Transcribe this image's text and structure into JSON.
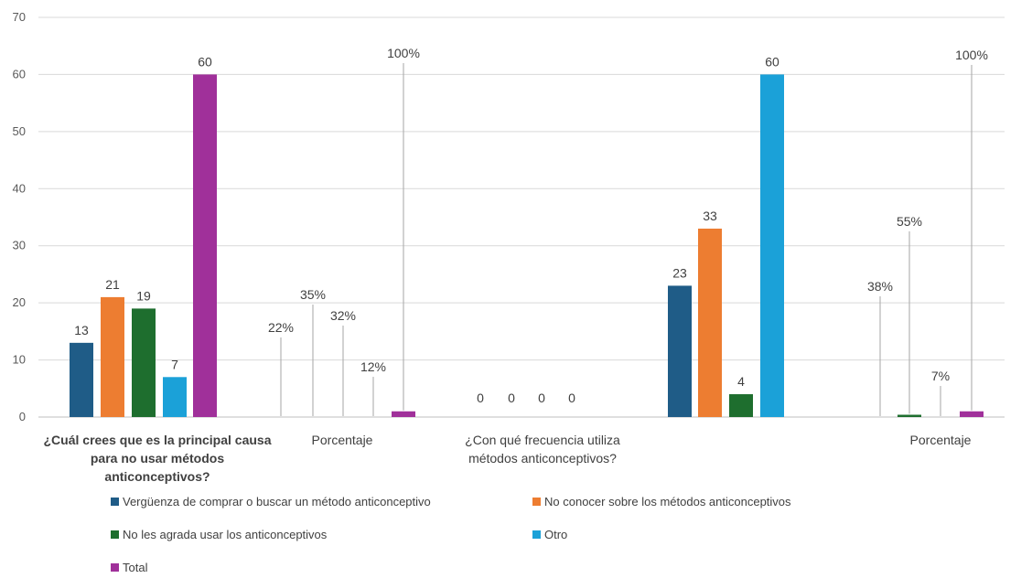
{
  "chart_data": {
    "type": "bar",
    "ylim": [
      0,
      70
    ],
    "yticks": [
      0,
      10,
      20,
      30,
      40,
      50,
      60,
      70
    ],
    "grid": true,
    "legend_position": "bottom",
    "categories": [
      "¿Cuál crees que es la principal causa para no usar métodos anticonceptivos?",
      "Porcentaje",
      "¿Con qué frecuencia utiliza métodos anticonceptivos?",
      "Porcentaje"
    ],
    "series": [
      {
        "name": "Vergüenza de comprar o buscar un método anticonceptivo",
        "color": "#1f5c87",
        "values": [
          13,
          0.22,
          0,
          null
        ],
        "labels": [
          "13",
          "22%",
          "0",
          ""
        ]
      },
      {
        "name": "No conocer sobre los métodos anticonceptivos",
        "color": "#ed7d31",
        "values": [
          21,
          0.35,
          0,
          0.38
        ],
        "labels": [
          "21",
          "35%",
          "0",
          "38%"
        ]
      },
      {
        "name": "No les agrada usar los anticonceptivos",
        "color": "#1e6e2e",
        "values": [
          19,
          0.32,
          0,
          0.55
        ],
        "labels": [
          "19",
          "32%",
          "0",
          "55%"
        ]
      },
      {
        "name": "Otro",
        "color": "#1ba1d8",
        "values": [
          7,
          0.12,
          0,
          0.07
        ],
        "labels": [
          "7",
          "12%",
          "0",
          "7%"
        ]
      },
      {
        "name": "Total",
        "color": "#a0309a",
        "values": [
          60,
          1,
          null,
          1
        ],
        "labels": [
          "60",
          "100%",
          "",
          "100%"
        ]
      }
    ],
    "extra_bars": [
      {
        "category_index": 2,
        "series_name": "Vergüenza de comprar o buscar un método anticonceptivo",
        "value": 23,
        "label": "23"
      },
      {
        "category_index": 2,
        "series_name": "No conocer sobre los métodos anticonceptivos",
        "value": 33,
        "label": "33"
      },
      {
        "category_index": 2,
        "series_name": "No les agrada usar los anticonceptivos",
        "value": 4,
        "label": "4"
      },
      {
        "category_index": 2,
        "series_name": "Otro",
        "value": 60,
        "label": "60"
      }
    ]
  }
}
